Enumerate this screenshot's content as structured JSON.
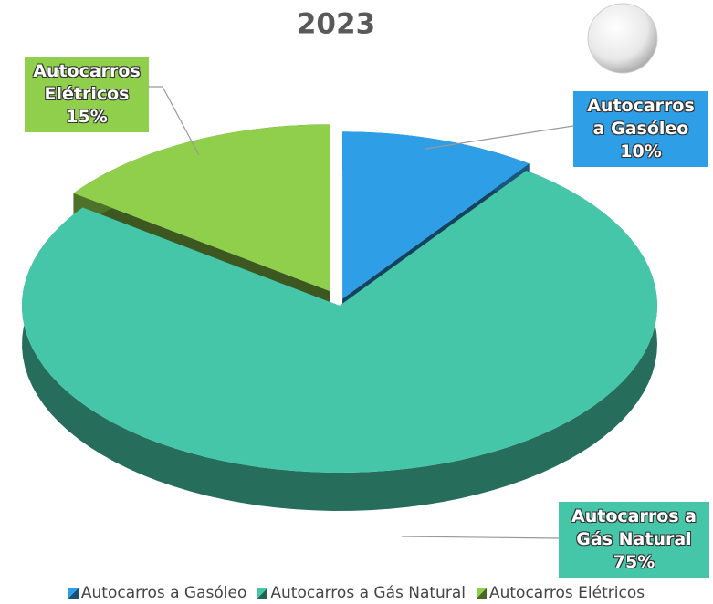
{
  "chart_data": {
    "type": "pie",
    "title": "2023",
    "categories": [
      "Autocarros a Gasóleo",
      "Autocarros a Gás Natural",
      "Autocarros Elétricos"
    ],
    "values": [
      10,
      75,
      15
    ],
    "value_labels": [
      "10%",
      "75%",
      "15%"
    ],
    "colors": [
      "#2e9fe6",
      "#46c6a8",
      "#8fcf4c"
    ],
    "legend": "bottom"
  }
}
